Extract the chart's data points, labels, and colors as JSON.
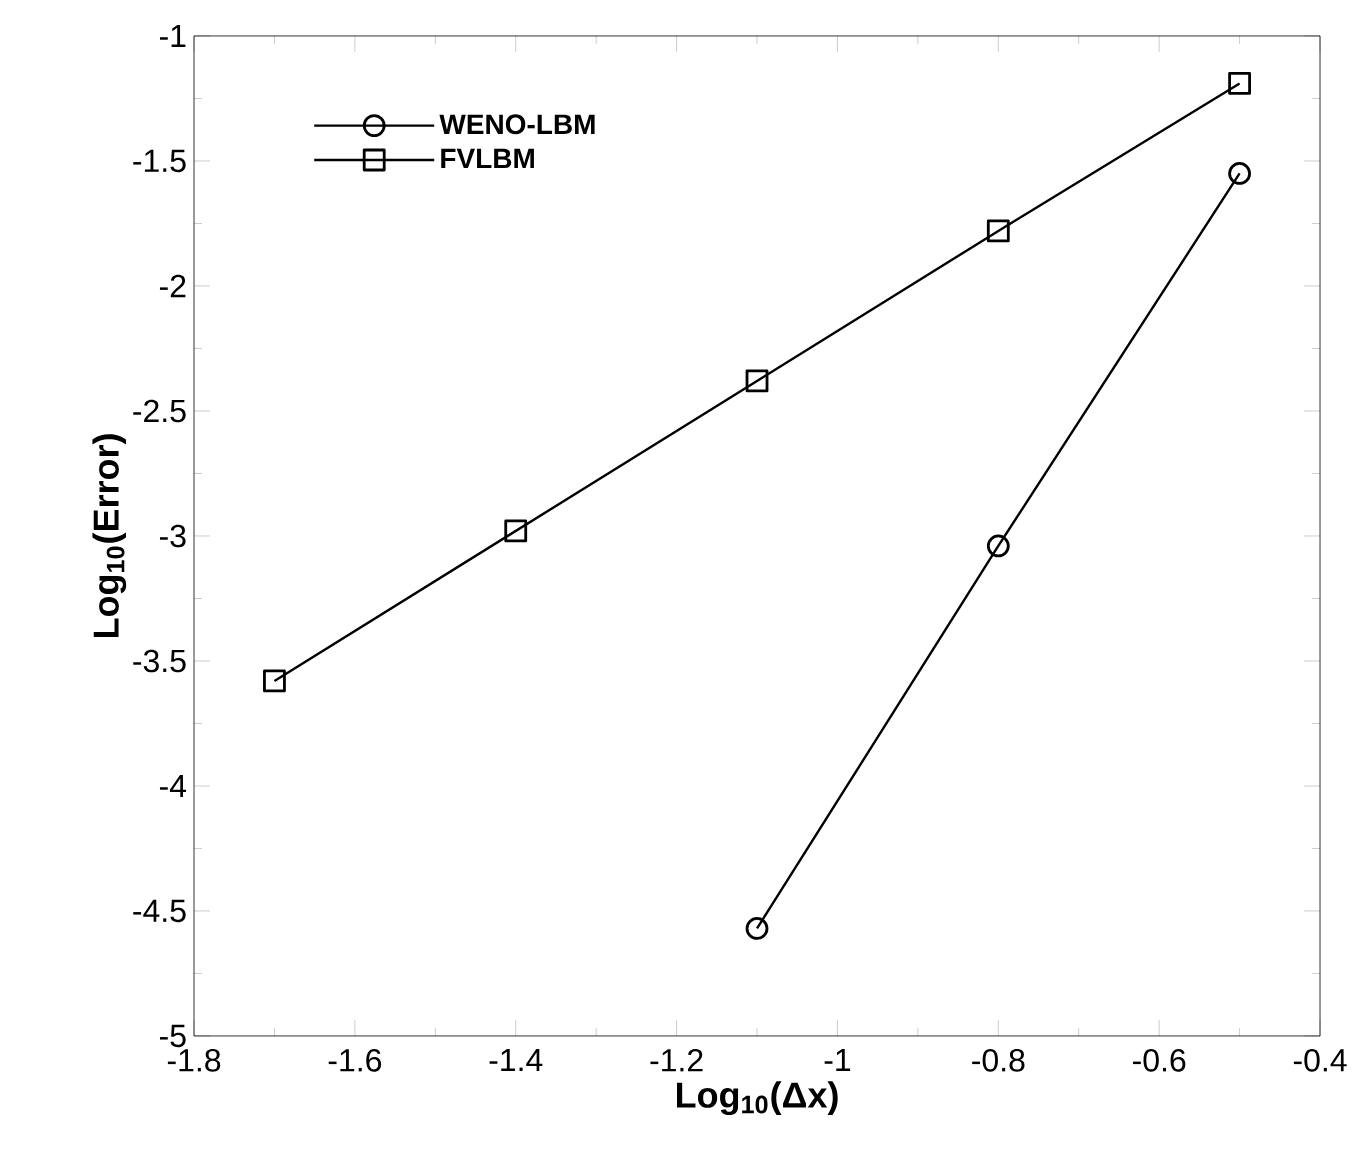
{
  "chart_data": {
    "type": "line",
    "xlabel": "Log$_{10}$(Δx)",
    "ylabel": "Log$_{10}$(Error)",
    "xlim": [
      -1.8,
      -0.4
    ],
    "ylim": [
      -5,
      -1
    ],
    "xticks": [
      -1.8,
      -1.6,
      -1.4,
      -1.2,
      -1,
      -0.8,
      -0.6,
      -0.4
    ],
    "yticks": [
      -5,
      -4.5,
      -4,
      -3.5,
      -3,
      -2.5,
      -2,
      -1.5,
      -1
    ],
    "legend": "top left",
    "grid": false,
    "line_style": "solid",
    "series": [
      {
        "name": "WENO-LBM",
        "color": "#000000",
        "marker": "circle",
        "x": [
          -1.1,
          -0.8,
          -0.5
        ],
        "values": [
          -4.57,
          -3.04,
          -1.55
        ]
      },
      {
        "name": "FVLBM",
        "color": "#000000",
        "marker": "square",
        "x": [
          -1.7,
          -1.4,
          -1.1,
          -0.8,
          -0.5
        ],
        "values": [
          -3.58,
          -2.98,
          -2.38,
          -1.78,
          -1.19
        ]
      }
    ]
  }
}
